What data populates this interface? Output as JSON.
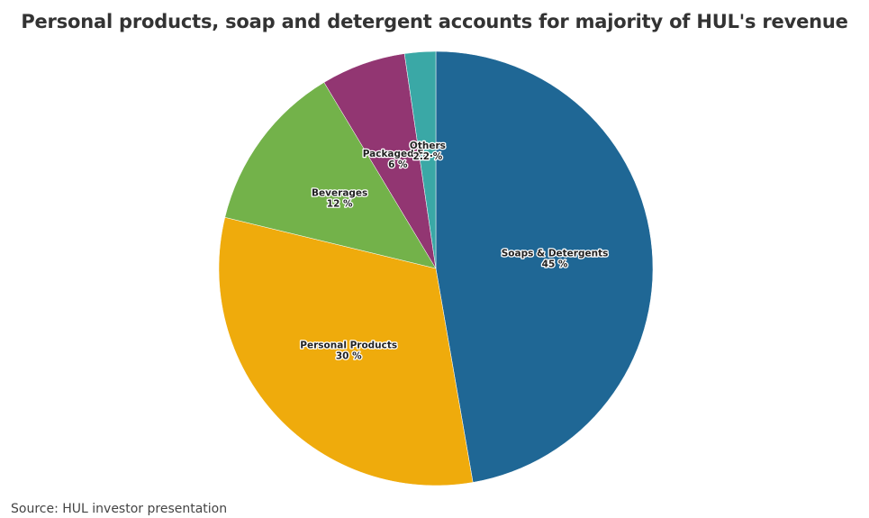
{
  "chart_data": {
    "type": "pie",
    "title": "Personal products, soap and detergent accounts for majority of HUL's revenue",
    "source": "Source: HUL investor presentation",
    "slices": [
      {
        "name": "Soaps & Detergents",
        "value": 45,
        "label": "45 %",
        "color": "#1f6795"
      },
      {
        "name": "Personal Products",
        "value": 30,
        "label": "30 %",
        "color": "#efab0c"
      },
      {
        "name": "Beverages",
        "value": 12,
        "label": "12 %",
        "color": "#73b24a"
      },
      {
        "name": "Packaged F...",
        "value": 6,
        "label": "6 %",
        "color": "#923672"
      },
      {
        "name": "Others",
        "value": 2.2,
        "label": "2.2 %",
        "color": "#3aa8a6"
      }
    ]
  }
}
